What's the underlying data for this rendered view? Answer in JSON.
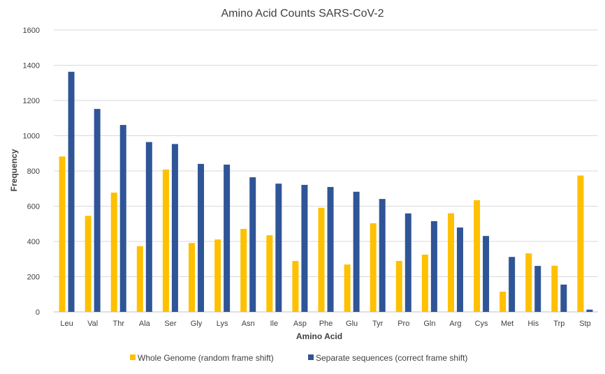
{
  "chart_data": {
    "type": "bar",
    "title": "Amino Acid Counts SARS-CoV-2",
    "xlabel": "Amino Acid",
    "ylabel": "Frequency",
    "ylim": [
      0,
      1600
    ],
    "yticks": [
      0,
      200,
      400,
      600,
      800,
      1000,
      1200,
      1400,
      1600
    ],
    "grid": true,
    "legend_position": "bottom",
    "categories": [
      "Leu",
      "Val",
      "Thr",
      "Ala",
      "Ser",
      "Gly",
      "Lys",
      "Asn",
      "Ile",
      "Asp",
      "Phe",
      "Glu",
      "Tyr",
      "Pro",
      "Gln",
      "Arg",
      "Cys",
      "Met",
      "His",
      "Trp",
      "Stp"
    ],
    "series": [
      {
        "name": "Whole Genome (random frame shift)",
        "color": "#FFC000",
        "values": [
          882,
          545,
          677,
          373,
          808,
          391,
          411,
          471,
          435,
          289,
          591,
          269,
          503,
          289,
          325,
          560,
          634,
          115,
          332,
          262,
          774
        ]
      },
      {
        "name": "Separate sequences (correct frame shift)",
        "color": "#2F5597",
        "values": [
          1363,
          1152,
          1061,
          964,
          953,
          840,
          836,
          764,
          728,
          721,
          709,
          682,
          641,
          559,
          515,
          479,
          431,
          312,
          261,
          155,
          13
        ]
      }
    ]
  }
}
